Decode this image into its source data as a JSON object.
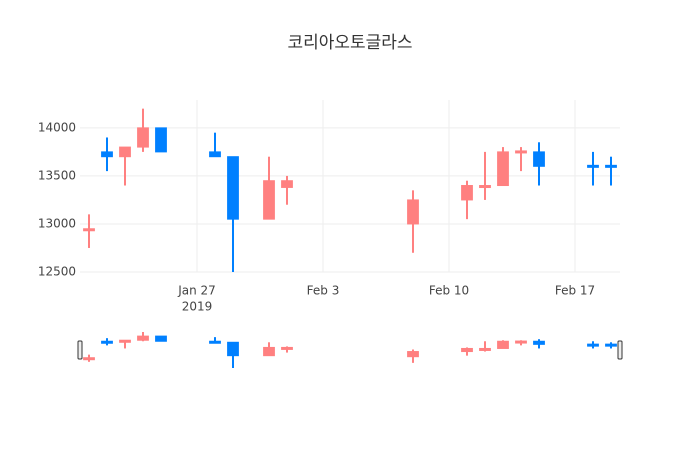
{
  "chart_data": {
    "type": "candlestick",
    "title": "코리아오토글라스",
    "x": [
      "2019-01-21",
      "2019-01-22",
      "2019-01-23",
      "2019-01-24",
      "2019-01-25",
      "2019-01-28",
      "2019-01-29",
      "2019-01-31",
      "2019-02-01",
      "2019-02-08",
      "2019-02-11",
      "2019-02-12",
      "2019-02-13",
      "2019-02-14",
      "2019-02-15",
      "2019-02-18",
      "2019-02-19"
    ],
    "open": [
      12930,
      13750,
      13700,
      13800,
      14000,
      13750,
      13700,
      13050,
      13380,
      13000,
      13250,
      13390,
      13400,
      13740,
      13750,
      13610,
      13610
    ],
    "high": [
      13100,
      13900,
      13800,
      14200,
      14000,
      13950,
      13700,
      13700,
      13500,
      13350,
      13450,
      13750,
      13800,
      13800,
      13850,
      13750,
      13700
    ],
    "low": [
      12750,
      13550,
      13400,
      13750,
      13750,
      13700,
      12450,
      13050,
      13200,
      12700,
      13050,
      13250,
      13400,
      13550,
      13400,
      13400,
      13400
    ],
    "close": [
      12950,
      13700,
      13800,
      14000,
      13750,
      13700,
      13050,
      13450,
      13450,
      13250,
      13400,
      13400,
      13750,
      13760,
      13600,
      13600,
      13600
    ],
    "increasing_color": "#ff8080",
    "decreasing_color": "#0080ff",
    "xlim": [
      "2019-01-20 12:00",
      "2019-02-19 12:00"
    ],
    "xticks": [
      {
        "value": "2019-01-27",
        "label": "Jan 27",
        "sublabel": "2019"
      },
      {
        "value": "2019-02-03",
        "label": "Feb 3"
      },
      {
        "value": "2019-02-10",
        "label": "Feb 10"
      },
      {
        "value": "2019-02-17",
        "label": "Feb 17"
      }
    ],
    "ylim": [
      12500,
      14290
    ],
    "yticks": [
      12500,
      13000,
      13500,
      14000
    ],
    "grid": true,
    "rangeslider": true
  }
}
